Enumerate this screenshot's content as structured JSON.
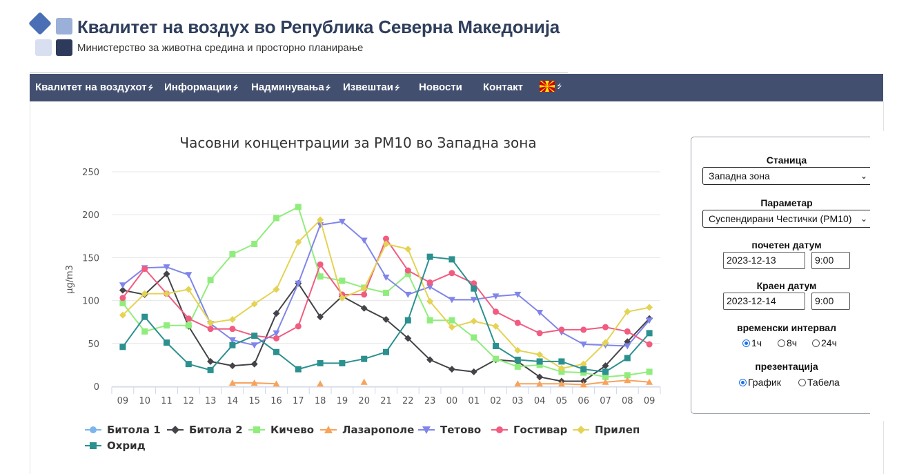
{
  "header": {
    "title": "Квалитет на воздух во Република Северна Македонија",
    "subtitle": "Министерство за животна средина и просторно планирање"
  },
  "nav": {
    "items": [
      {
        "label": "Квалитет на воздухот",
        "dropdown": true
      },
      {
        "label": "Информации",
        "dropdown": true
      },
      {
        "label": "Надминувања",
        "dropdown": true
      },
      {
        "label": "Извештаи",
        "dropdown": true
      },
      {
        "label": "Новости",
        "dropdown": false
      },
      {
        "label": "Контакт",
        "dropdown": false
      }
    ],
    "language_flag": "mk-flag-icon"
  },
  "colors": {
    "nav_bg": "#424f6f",
    "title": "#2f3e5c"
  },
  "panel": {
    "station_label": "Станица",
    "station_value": "Западна зона",
    "parameter_label": "Параметар",
    "parameter_value": "Суспендирани Честички (PM10)",
    "start_label": "почетен датум",
    "start_date": "2023-12-13",
    "start_time": "9:00",
    "end_label": "Краен датум",
    "end_date": "2023-12-14",
    "end_time": "9:00",
    "interval_label": "временски интервал",
    "intervals": [
      "1ч",
      "8ч",
      "24ч"
    ],
    "interval_selected": "1ч",
    "presentation_label": "презентација",
    "presentations": [
      "График",
      "Табела"
    ],
    "presentation_selected": "График"
  },
  "chart_data": {
    "type": "line",
    "title": "Часовни концентрации за PM10 во Западна зона",
    "ylabel": "µg/m3",
    "ylim": [
      0,
      250
    ],
    "yticks": [
      0,
      50,
      100,
      150,
      200,
      250
    ],
    "categories": [
      "09",
      "10",
      "11",
      "12",
      "13",
      "14",
      "15",
      "16",
      "17",
      "18",
      "19",
      "20",
      "21",
      "22",
      "23",
      "00",
      "01",
      "02",
      "03",
      "04",
      "05",
      "06",
      "07",
      "08",
      "09"
    ],
    "grid": true,
    "legend_position": "bottom",
    "series": [
      {
        "name": "Битола 1",
        "color": "#7cb5ec",
        "marker": "circle",
        "values": [
          null,
          null,
          null,
          null,
          null,
          null,
          null,
          null,
          null,
          null,
          null,
          null,
          null,
          null,
          null,
          null,
          null,
          null,
          null,
          null,
          null,
          null,
          null,
          null,
          null
        ]
      },
      {
        "name": "Битола 2",
        "color": "#434348",
        "marker": "diamond",
        "values": [
          112,
          107,
          131,
          70,
          29,
          24,
          26,
          85,
          120,
          81,
          105,
          91,
          78,
          56,
          31,
          20,
          17,
          31,
          29,
          11,
          6,
          6,
          24,
          52,
          79
        ]
      },
      {
        "name": "Кичево",
        "color": "#90ed7d",
        "marker": "square",
        "values": [
          97,
          64,
          71,
          71,
          124,
          154,
          166,
          196,
          209,
          128,
          123,
          115,
          109,
          131,
          77,
          77,
          57,
          32,
          23,
          25,
          17,
          16,
          11,
          13,
          17
        ]
      },
      {
        "name": "Лазарополе",
        "color": "#f7a35c",
        "marker": "triangle",
        "values": [
          null,
          null,
          null,
          null,
          null,
          4,
          4,
          3,
          null,
          3,
          null,
          5,
          null,
          null,
          null,
          null,
          null,
          null,
          3,
          3,
          3,
          2,
          5,
          7,
          5
        ]
      },
      {
        "name": "Тетово",
        "color": "#8085e9",
        "marker": "triangle-down",
        "values": [
          118,
          138,
          139,
          130,
          73,
          54,
          48,
          62,
          120,
          188,
          192,
          170,
          127,
          107,
          116,
          101,
          101,
          105,
          107,
          86,
          63,
          49,
          48,
          47,
          77
        ]
      },
      {
        "name": "Гостивар",
        "color": "#f15c80",
        "marker": "circle",
        "values": [
          103,
          137,
          108,
          79,
          67,
          67,
          59,
          56,
          70,
          142,
          107,
          107,
          172,
          135,
          121,
          132,
          120,
          87,
          74,
          62,
          66,
          66,
          69,
          64,
          49
        ]
      },
      {
        "name": "Прилеп",
        "color": "#e4d354",
        "marker": "diamond",
        "values": [
          83,
          108,
          108,
          113,
          74,
          78,
          96,
          113,
          168,
          194,
          103,
          114,
          166,
          160,
          99,
          69,
          76,
          70,
          42,
          37,
          21,
          26,
          51,
          87,
          92
        ]
      },
      {
        "name": "Охрид",
        "color": "#2b908f",
        "marker": "square",
        "values": [
          46,
          81,
          51,
          26,
          19,
          48,
          59,
          40,
          20,
          27,
          27,
          32,
          40,
          77,
          151,
          148,
          114,
          47,
          31,
          29,
          29,
          20,
          17,
          33,
          62
        ]
      }
    ]
  }
}
